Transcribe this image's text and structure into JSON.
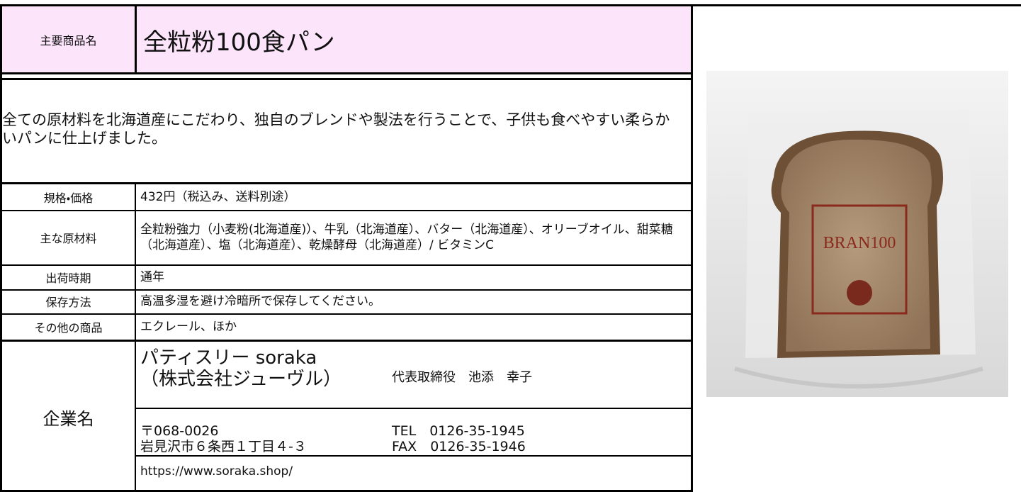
{
  "header": {
    "label": "主要商品名",
    "title": "全粒粉100食パン"
  },
  "description": "全ての原材料を北海道産にこだわり、独自のブレンドや製法を行うことで、子供も食べやすい柔らかいパンに仕上げました。",
  "specs": [
    {
      "label": "規格・価格",
      "value": "432円（税込み、送料別途）"
    },
    {
      "label": "主な原材料",
      "value": "全粒粉強力（小麦粉(北海道産)）、牛乳（北海道産）、バター（北海道産）、オリーブオイル、甜菜糖（北海道産）、塩（北海道産）、乾燥酵母（北海道産）/ ビタミンC"
    },
    {
      "label": "出荷時期",
      "value": "通年"
    },
    {
      "label": "保存方法",
      "value": "高温多湿を避け冷暗所で保存してください。"
    },
    {
      "label": "その他の商品",
      "value": "エクレール、ほか"
    }
  ],
  "company": {
    "label": "企業名",
    "name": "パティスリー soraka",
    "corp": "（株式会社ジューヴル）",
    "representative": "代表取締役　池添　幸子",
    "postal": "〒068-0026",
    "address": "岩見沢市６条西１丁目４-３",
    "tel": "TEL　0126-35-1945",
    "fax": "FAX　0126-35-1946",
    "url": "https://www.soraka.shop/"
  },
  "image": {
    "label": "BRAN100"
  }
}
